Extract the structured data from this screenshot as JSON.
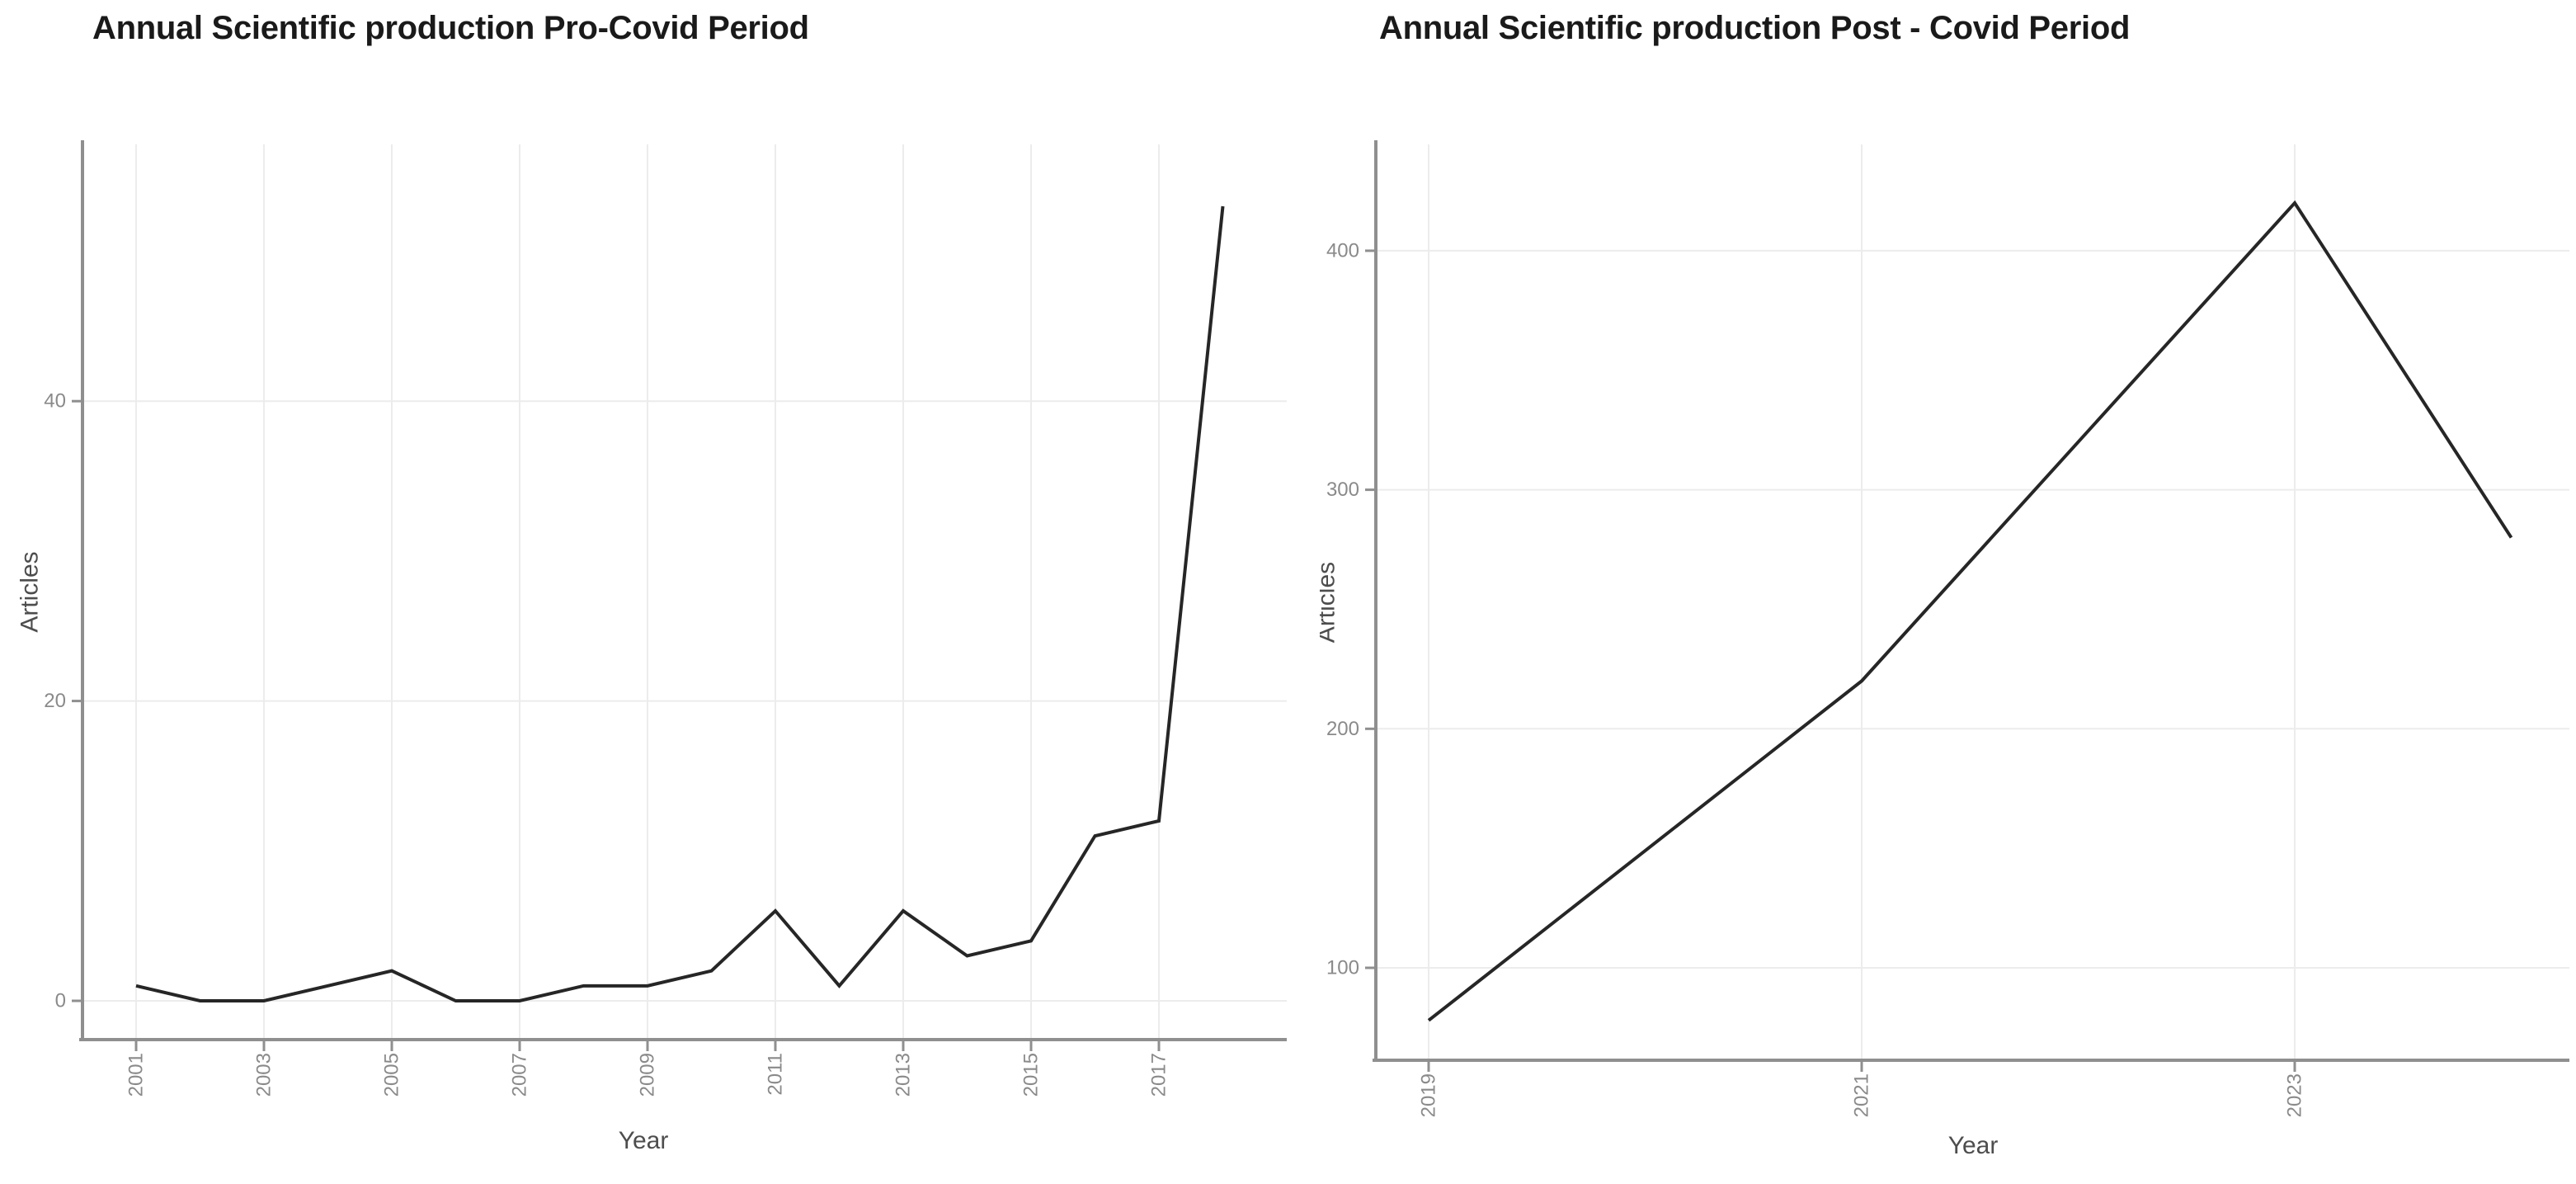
{
  "figure": {
    "background": "#ffffff"
  },
  "colors": {
    "title": "#1a1a1a",
    "axis_title": "#4d4d4d",
    "tick_label": "#8a8a8a",
    "axis_line": "#8f8f8f",
    "gridline": "#ececec",
    "series_line": "#262626",
    "background": "#ffffff"
  },
  "chart_data": [
    {
      "type": "line",
      "title": "Annual Scientific production Pro-Covid Period",
      "xlabel": "Year",
      "ylabel": "Articles",
      "x": [
        2001,
        2002,
        2003,
        2004,
        2005,
        2006,
        2007,
        2008,
        2009,
        2010,
        2011,
        2012,
        2013,
        2014,
        2015,
        2016,
        2017,
        2018
      ],
      "values": [
        1,
        0,
        0,
        1,
        2,
        0,
        0,
        1,
        1,
        2,
        6,
        1,
        6,
        3,
        4,
        11,
        12,
        53
      ],
      "series_name": "Articles",
      "xticks": [
        2001,
        2003,
        2005,
        2007,
        2009,
        2011,
        2013,
        2015,
        2017
      ],
      "yticks": [
        0,
        20,
        40
      ],
      "xlim": [
        2000.2,
        2019.0
      ],
      "ylim": [
        -3,
        58
      ],
      "grid": "major-light",
      "legend": "none"
    },
    {
      "type": "line",
      "title": "Annual Scientific production Post - Covid Period",
      "xlabel": "Year",
      "ylabel": "Articles",
      "x": [
        2019,
        2020,
        2021,
        2022,
        2023,
        2024
      ],
      "values": [
        78,
        149,
        220,
        320,
        420,
        280
      ],
      "series_name": "Articles",
      "xticks": [
        2019,
        2021,
        2023
      ],
      "yticks": [
        100,
        200,
        300,
        400
      ],
      "xlim": [
        2018.75,
        2024.3
      ],
      "ylim": [
        38,
        445
      ],
      "grid": "major-light",
      "legend": "none"
    }
  ]
}
